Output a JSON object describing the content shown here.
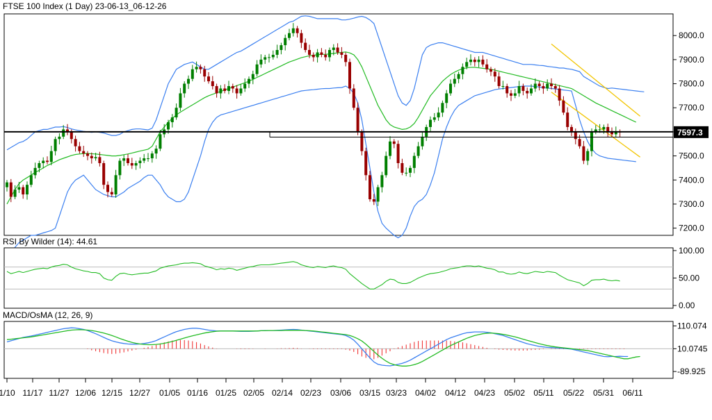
{
  "colors": {
    "bull": "#007f00",
    "bear": "#990000",
    "bollinger": "#3a7ff0",
    "middle": "#22bb22",
    "channel": "#f2c500",
    "rsi": "#22bb22",
    "macd": "#3a7ff0",
    "signal": "#22bb22",
    "osma": "#ee2222",
    "level": "#000000"
  },
  "chart_data": [
    {
      "type": "candlestick",
      "title": "FTSE 100 Index (1 Day) 23-06-13_06-12-26",
      "y_ticks": [
        "8000.0",
        "7900.0",
        "7800.0",
        "7700.0",
        "7600.0",
        "7500.0",
        "7400.0",
        "7300.0",
        "7200.0"
      ],
      "y_tick_values": [
        8000,
        7900,
        7800,
        7700,
        7600,
        7500,
        7400,
        7300,
        7200
      ],
      "ylim": [
        7170,
        8090
      ],
      "x_ticks": [
        "1/10",
        "11/17",
        "11/27",
        "12/06",
        "12/15",
        "12/27",
        "01/05",
        "01/16",
        "01/25",
        "02/05",
        "02/14",
        "02/23",
        "03/06",
        "03/15",
        "03/23",
        "04/02",
        "04/12",
        "04/23",
        "05/02",
        "05/11",
        "05/22",
        "05/31",
        "06/11"
      ],
      "last_price_label": "7597.3",
      "last_price": 7597.3,
      "horizontal_levels": [
        7600,
        7578
      ],
      "closes": [
        7390,
        7330,
        7360,
        7370,
        7340,
        7380,
        7420,
        7450,
        7470,
        7480,
        7475,
        7520,
        7570,
        7580,
        7610,
        7600,
        7570,
        7540,
        7520,
        7510,
        7500,
        7490,
        7495,
        7470,
        7380,
        7350,
        7340,
        7420,
        7480,
        7490,
        7470,
        7460,
        7470,
        7480,
        7490,
        7490,
        7510,
        7530,
        7590,
        7610,
        7640,
        7660,
        7700,
        7760,
        7800,
        7820,
        7860,
        7870,
        7860,
        7830,
        7810,
        7790,
        7760,
        7780,
        7770,
        7790,
        7780,
        7760,
        7780,
        7800,
        7820,
        7840,
        7880,
        7900,
        7910,
        7910,
        7920,
        7940,
        7960,
        7990,
        8010,
        8030,
        8010,
        7970,
        7940,
        7920,
        7910,
        7930,
        7920,
        7910,
        7940,
        7950,
        7930,
        7920,
        7890,
        7780,
        7700,
        7600,
        7520,
        7420,
        7320,
        7310,
        7370,
        7420,
        7500,
        7560,
        7550,
        7470,
        7430,
        7430,
        7450,
        7500,
        7540,
        7580,
        7620,
        7650,
        7660,
        7680,
        7720,
        7760,
        7800,
        7820,
        7840,
        7870,
        7890,
        7900,
        7890,
        7900,
        7880,
        7860,
        7850,
        7830,
        7790,
        7790,
        7760,
        7750,
        7760,
        7790,
        7770,
        7760,
        7780,
        7800,
        7790,
        7780,
        7800,
        7790,
        7780,
        7730,
        7680,
        7620,
        7600,
        7570,
        7540,
        7480,
        7520,
        7600,
        7610,
        7610,
        7620,
        7600,
        7590,
        7600,
        7597.3
      ],
      "upper_band": [
        7525,
        7535,
        7545,
        7555,
        7560,
        7570,
        7585,
        7600,
        7605,
        7610,
        7610,
        7615,
        7620,
        7620,
        7622,
        7618,
        7612,
        7608,
        7605,
        7602,
        7600,
        7598,
        7600,
        7598,
        7595,
        7590,
        7585,
        7585,
        7590,
        7600,
        7605,
        7610,
        7612,
        7612,
        7610,
        7608,
        7615,
        7650,
        7700,
        7750,
        7800,
        7830,
        7860,
        7870,
        7880,
        7885,
        7890,
        7880,
        7870,
        7860,
        7860,
        7870,
        7880,
        7890,
        7900,
        7910,
        7920,
        7930,
        7935,
        7945,
        7955,
        7965,
        7975,
        7985,
        7995,
        8005,
        8015,
        8025,
        8035,
        8045,
        8055,
        8060,
        8070,
        8080,
        8082,
        8080,
        8075,
        8070,
        8070,
        8070,
        8070,
        8070,
        8070,
        8065,
        8065,
        8068,
        8072,
        8077,
        8080,
        8075,
        8065,
        8050,
        8000,
        7950,
        7900,
        7850,
        7800,
        7750,
        7720,
        7710,
        7730,
        7780,
        7850,
        7920,
        7950,
        7960,
        7965,
        7970,
        7970,
        7965,
        7960,
        7955,
        7950,
        7945,
        7940,
        7935,
        7930,
        7930,
        7930,
        7925,
        7920,
        7915,
        7910,
        7905,
        7900,
        7895,
        7890,
        7885,
        7880,
        7880,
        7880,
        7878,
        7876,
        7875,
        7872,
        7870,
        7868,
        7865,
        7865,
        7862,
        7860,
        7855,
        7850,
        7830,
        7820,
        7810,
        7800,
        7790,
        7785,
        7780,
        7782,
        7780,
        7778,
        7776,
        7774,
        7772,
        7770,
        7768,
        7766
      ],
      "middle_band": [
        7300,
        7330,
        7360,
        7385,
        7400,
        7410,
        7420,
        7432,
        7440,
        7450,
        7460,
        7468,
        7476,
        7484,
        7490,
        7496,
        7502,
        7506,
        7508,
        7510,
        7510,
        7509,
        7508,
        7506,
        7504,
        7502,
        7500,
        7500,
        7502,
        7505,
        7508,
        7512,
        7516,
        7520,
        7524,
        7528,
        7540,
        7570,
        7600,
        7620,
        7640,
        7656,
        7670,
        7682,
        7692,
        7702,
        7712,
        7722,
        7732,
        7742,
        7750,
        7756,
        7762,
        7768,
        7774,
        7780,
        7786,
        7792,
        7798,
        7804,
        7810,
        7818,
        7826,
        7834,
        7842,
        7850,
        7858,
        7866,
        7874,
        7882,
        7890,
        7896,
        7902,
        7908,
        7912,
        7916,
        7918,
        7920,
        7922,
        7922,
        7924,
        7926,
        7928,
        7930,
        7932,
        7928,
        7920,
        7900,
        7870,
        7830,
        7790,
        7750,
        7710,
        7680,
        7650,
        7630,
        7620,
        7615,
        7610,
        7612,
        7620,
        7635,
        7660,
        7690,
        7720,
        7750,
        7770,
        7790,
        7810,
        7825,
        7838,
        7848,
        7856,
        7862,
        7866,
        7868,
        7868,
        7866,
        7864,
        7862,
        7860,
        7856,
        7852,
        7848,
        7844,
        7840,
        7836,
        7832,
        7828,
        7824,
        7820,
        7816,
        7812,
        7808,
        7804,
        7800,
        7796,
        7792,
        7788,
        7784,
        7780,
        7770,
        7760,
        7750,
        7740,
        7730,
        7720,
        7712,
        7704,
        7696,
        7688,
        7680,
        7672,
        7664,
        7656,
        7648,
        7640
      ],
      "lower_band": [
        7080,
        7100,
        7120,
        7140,
        7150,
        7160,
        7170,
        7170,
        7175,
        7180,
        7185,
        7190,
        7200,
        7250,
        7300,
        7350,
        7380,
        7400,
        7410,
        7420,
        7400,
        7380,
        7360,
        7350,
        7340,
        7335,
        7330,
        7330,
        7340,
        7350,
        7365,
        7375,
        7385,
        7395,
        7410,
        7420,
        7420,
        7400,
        7380,
        7350,
        7330,
        7320,
        7310,
        7310,
        7320,
        7350,
        7400,
        7450,
        7500,
        7560,
        7610,
        7640,
        7660,
        7670,
        7675,
        7680,
        7685,
        7690,
        7695,
        7700,
        7705,
        7710,
        7715,
        7720,
        7725,
        7730,
        7735,
        7740,
        7745,
        7750,
        7755,
        7760,
        7765,
        7770,
        7772,
        7774,
        7775,
        7777,
        7779,
        7780,
        7780,
        7782,
        7783,
        7784,
        7790,
        7780,
        7760,
        7720,
        7650,
        7550,
        7450,
        7350,
        7270,
        7220,
        7200,
        7185,
        7170,
        7160,
        7170,
        7200,
        7250,
        7290,
        7310,
        7320,
        7340,
        7380,
        7430,
        7500,
        7570,
        7620,
        7660,
        7690,
        7710,
        7720,
        7730,
        7740,
        7750,
        7755,
        7760,
        7765,
        7770,
        7775,
        7778,
        7780,
        7782,
        7784,
        7786,
        7788,
        7790,
        7790,
        7790,
        7788,
        7786,
        7784,
        7782,
        7780,
        7778,
        7776,
        7774,
        7772,
        7770,
        7710,
        7650,
        7600,
        7560,
        7530,
        7510,
        7500,
        7495,
        7490,
        7488,
        7486,
        7484,
        7482,
        7480,
        7478,
        7476
      ],
      "channel_upper": [
        [
          135,
          7965
        ],
        [
          157,
          7665
        ]
      ],
      "channel_lower": [
        [
          135,
          7765
        ],
        [
          157,
          7495
        ]
      ]
    },
    {
      "type": "line",
      "title": "RSI By Wilder (14): 44.61",
      "y_ticks": [
        "100.00",
        "50.00",
        "0.00"
      ],
      "y_tick_values": [
        100,
        50,
        0
      ],
      "ylim": [
        -5,
        105
      ],
      "levels": [
        70,
        30
      ],
      "values": [
        62,
        58,
        60,
        62,
        60,
        62,
        64,
        66,
        67,
        68,
        67,
        70,
        72,
        73,
        75,
        74,
        70,
        67,
        65,
        63,
        62,
        60,
        60,
        58,
        50,
        47,
        46,
        53,
        58,
        59,
        57,
        56,
        57,
        58,
        59,
        59,
        61,
        63,
        68,
        70,
        72,
        73,
        74,
        76,
        77,
        77,
        78,
        77,
        76,
        72,
        70,
        68,
        65,
        67,
        66,
        68,
        67,
        64,
        66,
        68,
        70,
        71,
        73,
        74,
        74,
        74,
        75,
        76,
        77,
        78,
        79,
        80,
        78,
        74,
        72,
        70,
        69,
        71,
        70,
        69,
        71,
        72,
        70,
        69,
        66,
        58,
        52,
        46,
        40,
        35,
        30,
        30,
        34,
        38,
        44,
        48,
        47,
        42,
        40,
        40,
        42,
        46,
        50,
        53,
        56,
        58,
        59,
        60,
        62,
        64,
        67,
        68,
        69,
        71,
        72,
        72,
        71,
        72,
        70,
        68,
        67,
        65,
        61,
        61,
        58,
        57,
        58,
        61,
        59,
        58,
        60,
        62,
        61,
        60,
        62,
        61,
        60,
        55,
        51,
        47,
        45,
        43,
        41,
        36,
        40,
        46,
        47,
        47,
        48,
        46,
        45,
        46,
        44.61
      ]
    },
    {
      "type": "line",
      "title": "MACD/OsMA (12, 26, 9)",
      "y_ticks": [
        "110.074",
        "10.0745",
        "-89.925"
      ],
      "y_tick_values": [
        110.074,
        10.0745,
        -89.925
      ],
      "ylim": [
        -120,
        130
      ],
      "levels": [
        10.0745
      ],
      "macd": [
        40,
        45,
        50,
        55,
        60,
        63,
        66,
        70,
        74,
        78,
        82,
        86,
        90,
        94,
        98,
        100,
        102,
        101,
        98,
        95,
        90,
        83,
        76,
        68,
        60,
        52,
        45,
        40,
        36,
        33,
        31,
        30,
        30,
        31,
        33,
        36,
        40,
        46,
        54,
        62,
        70,
        78,
        85,
        90,
        95,
        98,
        100,
        100,
        98,
        95,
        92,
        90,
        88,
        88,
        88,
        88,
        88,
        87,
        86,
        86,
        86,
        87,
        88,
        89,
        90,
        90,
        90,
        91,
        92,
        93,
        94,
        95,
        94,
        92,
        90,
        88,
        86,
        84,
        82,
        80,
        78,
        76,
        74,
        72,
        68,
        60,
        48,
        30,
        10,
        -10,
        -30,
        -48,
        -58,
        -62,
        -64,
        -65,
        -62,
        -58,
        -54,
        -48,
        -40,
        -30,
        -20,
        -10,
        0,
        10,
        20,
        30,
        40,
        50,
        58,
        64,
        70,
        76,
        80,
        82,
        84,
        84,
        84,
        82,
        80,
        76,
        72,
        68,
        62,
        56,
        50,
        44,
        38,
        32,
        28,
        24,
        20,
        18,
        16,
        15,
        14,
        13,
        12,
        10,
        8,
        4,
        0,
        -4,
        -8,
        -12,
        -16,
        -20,
        -24,
        -25,
        -24,
        -24,
        -23,
        -24,
        -24
      ],
      "signal": [
        50,
        52,
        54,
        56,
        58,
        60,
        62,
        65,
        68,
        71,
        74,
        77,
        80,
        83,
        86,
        89,
        92,
        93,
        94,
        93,
        92,
        90,
        87,
        83,
        79,
        74,
        68,
        62,
        55,
        49,
        43,
        38,
        34,
        31,
        29,
        28,
        28,
        29,
        31,
        34,
        38,
        42,
        47,
        52,
        57,
        62,
        67,
        71,
        75,
        79,
        82,
        85,
        87,
        88,
        88,
        88,
        88,
        88,
        88,
        88,
        88,
        88,
        88,
        89,
        89,
        90,
        90,
        90,
        90,
        91,
        91,
        91,
        91,
        91,
        90,
        89,
        88,
        86,
        84,
        82,
        80,
        78,
        76,
        74,
        72,
        68,
        62,
        54,
        44,
        30,
        14,
        -2,
        -18,
        -32,
        -44,
        -54,
        -60,
        -64,
        -66,
        -66,
        -64,
        -60,
        -54,
        -46,
        -36,
        -26,
        -16,
        -6,
        4,
        14,
        24,
        32,
        40,
        48,
        56,
        62,
        68,
        72,
        76,
        78,
        79,
        78,
        76,
        73,
        70,
        66,
        62,
        57,
        52,
        47,
        42,
        37,
        32,
        28,
        24,
        21,
        18,
        16,
        14,
        12,
        10,
        8,
        6,
        4,
        2,
        -2,
        -6,
        -10,
        -14,
        -18,
        -22,
        -26,
        -30,
        -34,
        -34,
        -30,
        -26,
        -24
      ],
      "osma": [
        0,
        0,
        0,
        0,
        0,
        0,
        0,
        0,
        0,
        0,
        0,
        0,
        0,
        0,
        0,
        0,
        0,
        0,
        0,
        0,
        -2,
        -7,
        -11,
        -15,
        -19,
        -22,
        -23,
        -22,
        -19,
        -16,
        -12,
        -8,
        -4,
        0,
        4,
        8,
        12,
        17,
        23,
        28,
        32,
        36,
        38,
        38,
        38,
        36,
        33,
        29,
        23,
        16,
        10,
        5,
        1,
        0,
        0,
        0,
        0,
        -1,
        -2,
        -2,
        -2,
        -1,
        0,
        0,
        1,
        0,
        0,
        1,
        2,
        2,
        3,
        4,
        3,
        1,
        0,
        -1,
        -2,
        -2,
        -2,
        -2,
        -2,
        -2,
        -2,
        -2,
        -4,
        -8,
        -14,
        -24,
        -34,
        -40,
        -44,
        -46,
        -40,
        -30,
        -20,
        -11,
        -2,
        6,
        12,
        18,
        24,
        30,
        34,
        36,
        36,
        36,
        36,
        36,
        36,
        36,
        34,
        32,
        30,
        28,
        24,
        20,
        16,
        12,
        8,
        4,
        0,
        -2,
        -4,
        -5,
        -6,
        -7,
        -8,
        -8,
        -8,
        -8,
        -6,
        -5,
        -4,
        -2,
        0,
        -2,
        -2,
        -2,
        -2,
        -2,
        -2,
        -2,
        -2,
        -2,
        -2,
        -2,
        -2,
        -2,
        -2,
        -2,
        -2,
        -2,
        -2,
        -2,
        0,
        0,
        0
      ]
    }
  ]
}
